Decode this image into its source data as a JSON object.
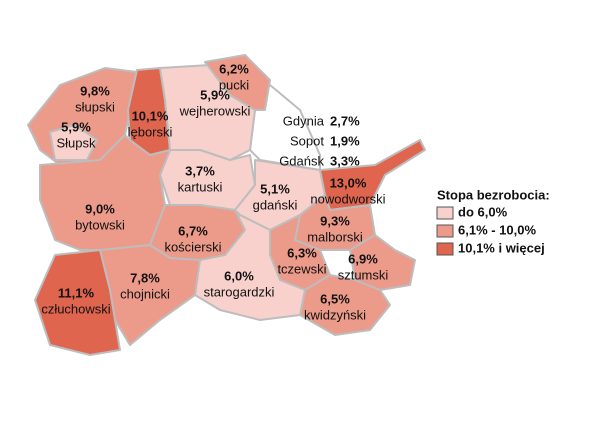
{
  "regions": [
    {
      "name": "słupski",
      "value": "9,8%",
      "color": "#ec9a8a"
    },
    {
      "name": "Słupsk",
      "value": "5,9%",
      "color": "#f8d0cc"
    },
    {
      "name": "lęborski",
      "value": "10,1%",
      "color": "#e0654e"
    },
    {
      "name": "wejherowski",
      "value": "5,9%",
      "color": "#f8d0cc"
    },
    {
      "name": "pucki",
      "value": "6,2%",
      "color": "#ec9a8a"
    },
    {
      "name": "kartuski",
      "value": "3,7%",
      "color": "#f8d0cc"
    },
    {
      "name": "gdański",
      "value": "5,1%",
      "color": "#f8d0cc"
    },
    {
      "name": "nowodworski",
      "value": "13,0%",
      "color": "#e0654e"
    },
    {
      "name": "malborski",
      "value": "9,3%",
      "color": "#ec9a8a"
    },
    {
      "name": "tczewski",
      "value": "6,3%",
      "color": "#ec9a8a"
    },
    {
      "name": "sztumski",
      "value": "6,9%",
      "color": "#ec9a8a"
    },
    {
      "name": "kwidzyński",
      "value": "6,5%",
      "color": "#ec9a8a"
    },
    {
      "name": "starogardzki",
      "value": "6,0%",
      "color": "#f8d0cc"
    },
    {
      "name": "kościerski",
      "value": "6,7%",
      "color": "#ec9a8a"
    },
    {
      "name": "bytowski",
      "value": "9,0%",
      "color": "#ec9a8a"
    },
    {
      "name": "chojnicki",
      "value": "7,8%",
      "color": "#ec9a8a"
    },
    {
      "name": "człuchowski",
      "value": "11,1%",
      "color": "#e0654e"
    }
  ],
  "cities": [
    {
      "name": "Gdynia",
      "value": "2,7%"
    },
    {
      "name": "Sopot",
      "value": "1,9%"
    },
    {
      "name": "Gdańsk",
      "value": "3,3%"
    }
  ],
  "legend": {
    "title": "Stopa bezrobocia:",
    "items": [
      {
        "label": "do 6,0%",
        "color": "#f8d0cc"
      },
      {
        "label": "6,1% - 10,0%",
        "color": "#ec9a8a"
      },
      {
        "label": "10,1% i więcej",
        "color": "#e0654e"
      }
    ]
  }
}
